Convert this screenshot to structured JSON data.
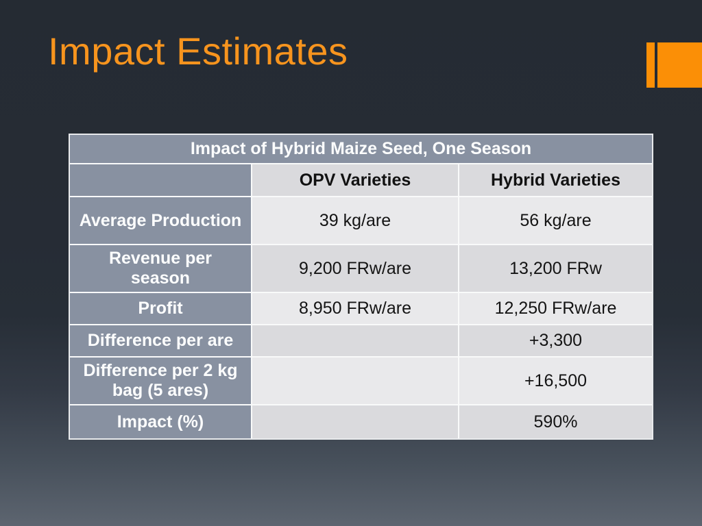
{
  "slide": {
    "title": "Impact Estimates"
  },
  "theme": {
    "accent_orange": "#FB8F06",
    "title_orange": "#F7941E",
    "background_top": "#252B33",
    "background_bottom": "#5D6570",
    "header_fill": "#8891A1",
    "row_fill_light": "#E9E9EB",
    "row_fill_dark": "#DADADD",
    "grid_line": "#F9FAFA",
    "text_on_header": "#FCFDFD",
    "text_on_data": "#141414"
  },
  "table": {
    "title": "Impact of Hybrid Maize Seed, One Season",
    "col_headers": {
      "corner": "",
      "opv": "OPV Varieties",
      "hybrid": "Hybrid Varieties"
    },
    "rows": [
      {
        "label": "Average Production",
        "opv": "39 kg/are",
        "hybrid": "56 kg/are"
      },
      {
        "label": "Revenue per\nseason",
        "opv": "9,200 FRw/are",
        "hybrid": "13,200 FRw"
      },
      {
        "label": "Profit",
        "opv": "8,950 FRw/are",
        "hybrid": "12,250 FRw/are"
      },
      {
        "label": "Difference per are",
        "opv": "",
        "hybrid": "+3,300"
      },
      {
        "label": "Difference per 2 kg\nbag (5 ares)",
        "opv": "",
        "hybrid": "+16,500"
      },
      {
        "label": "Impact (%)",
        "opv": "",
        "hybrid": "590%"
      }
    ]
  }
}
